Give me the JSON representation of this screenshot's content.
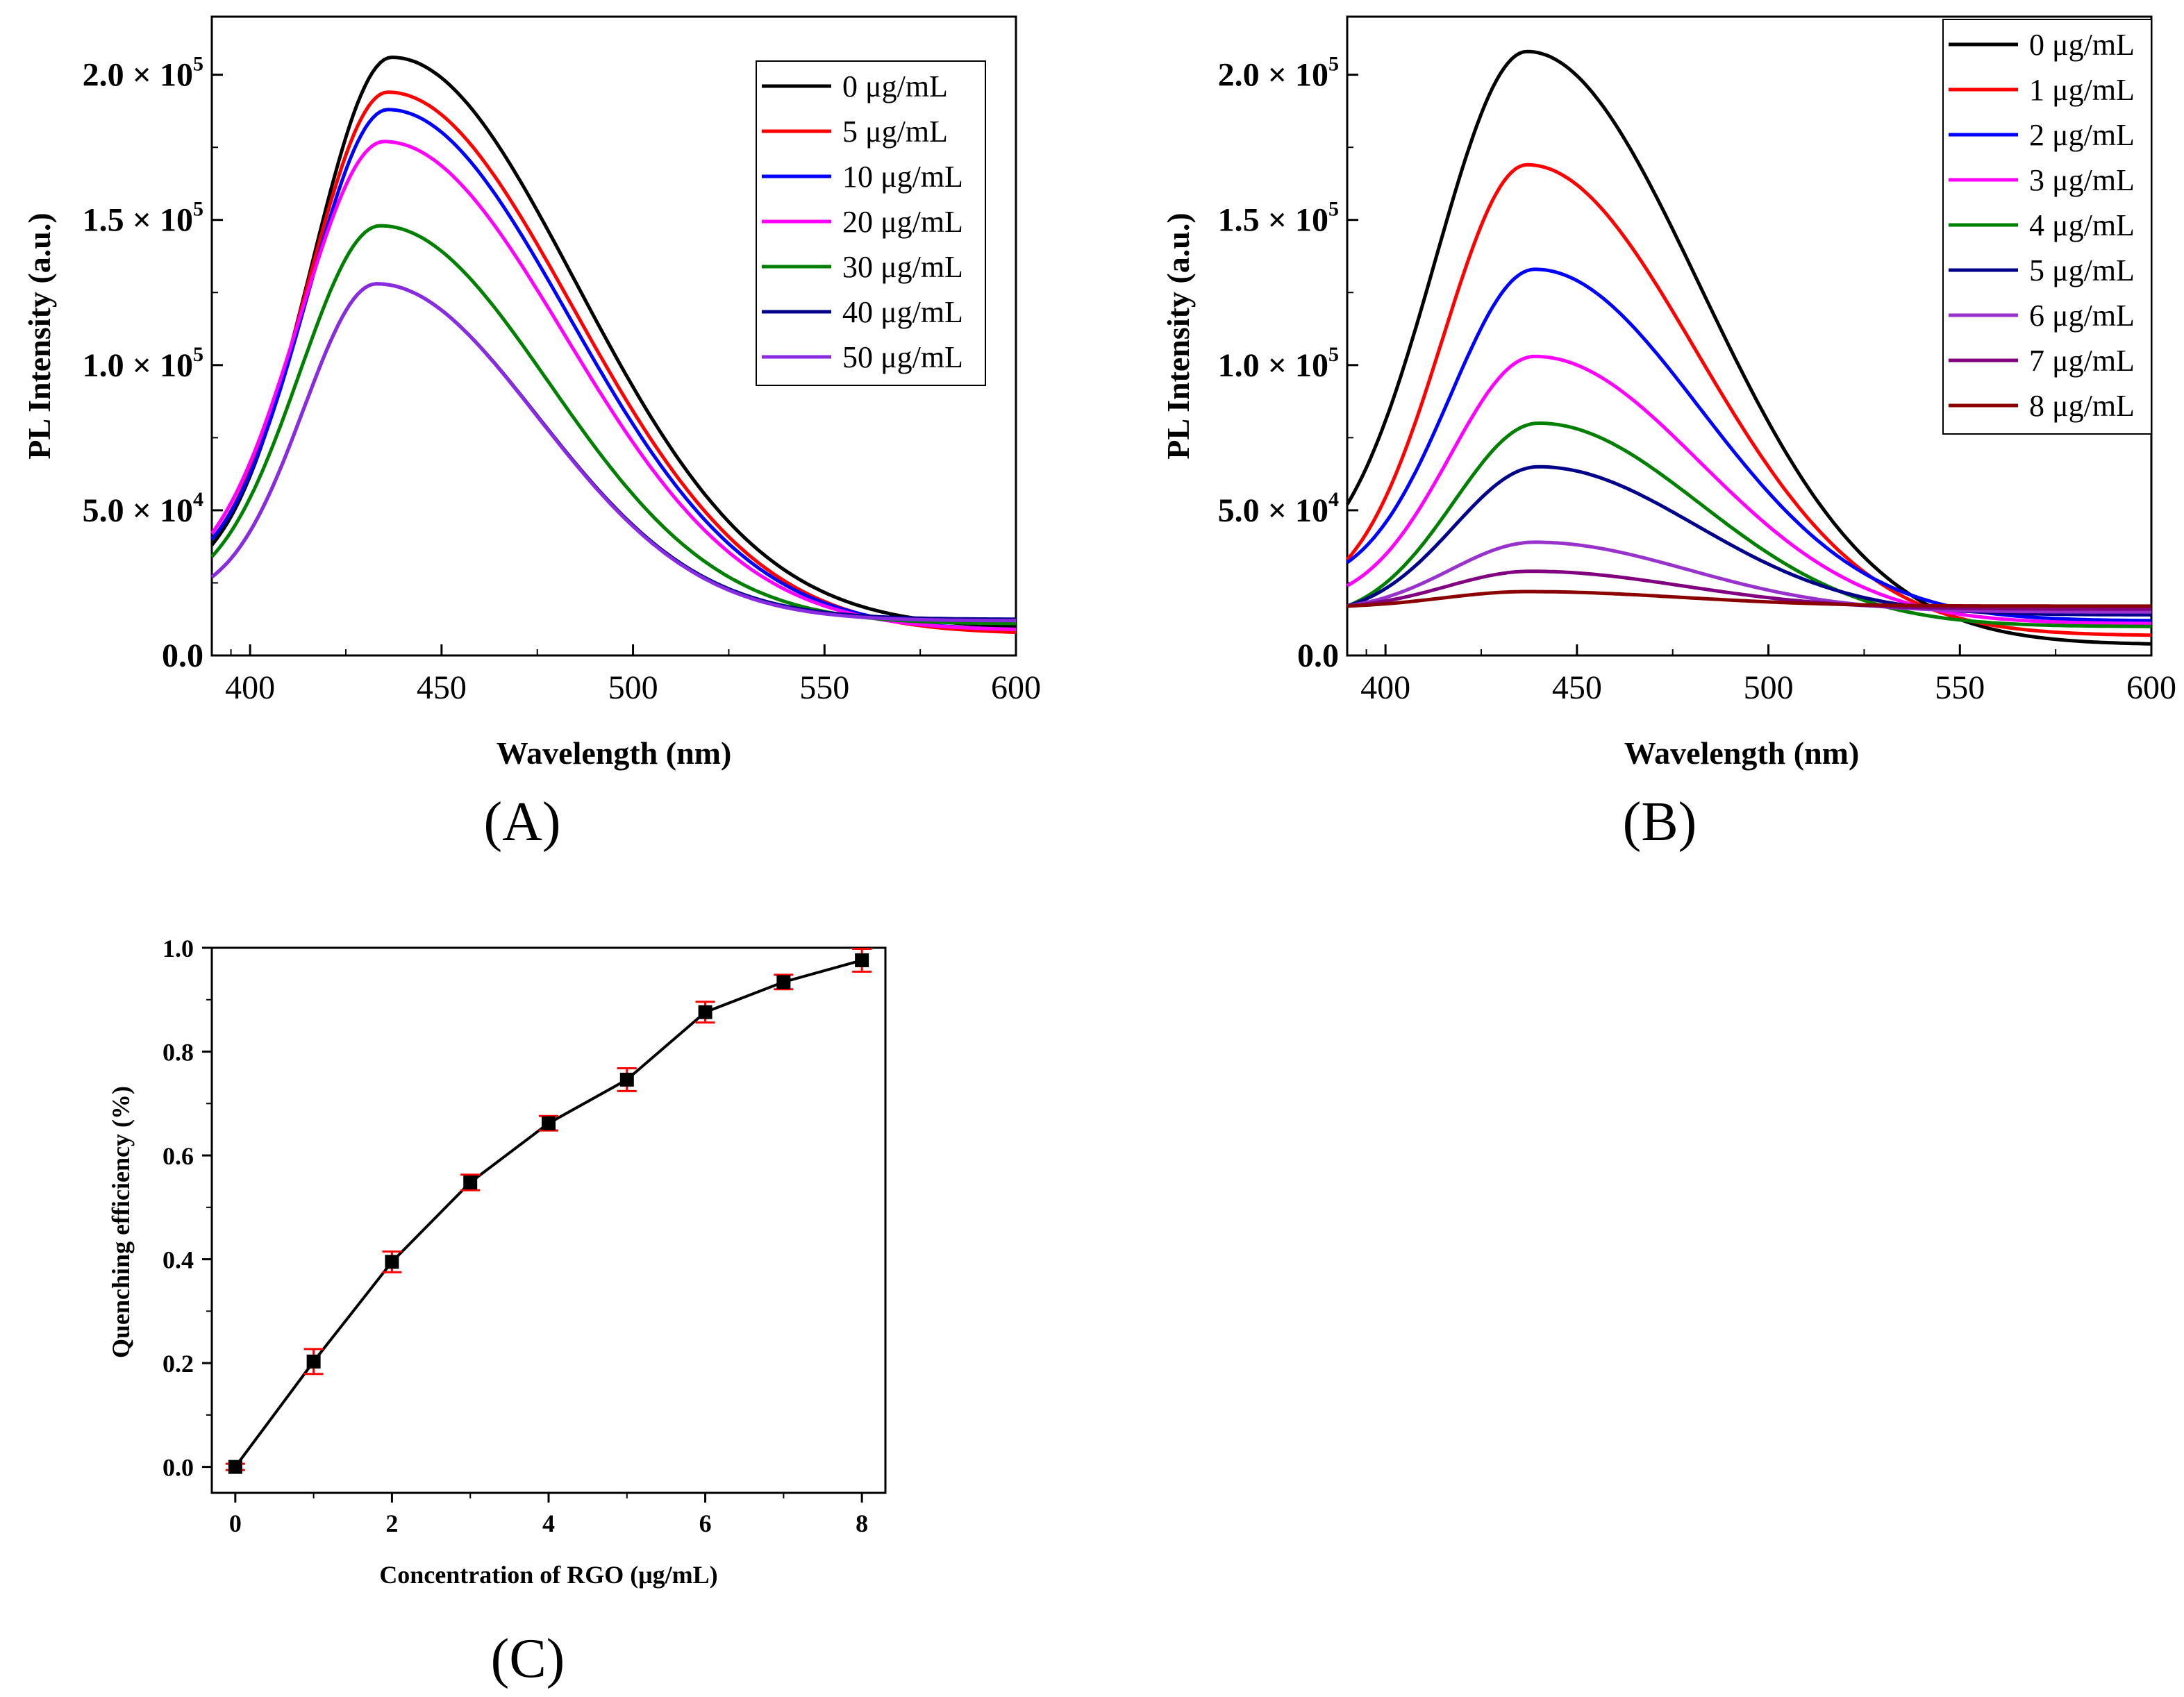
{
  "chart_data": [
    {
      "id": "A",
      "type": "line",
      "panel_label": "(A)",
      "xlabel": "Wavelength (nm)",
      "ylabel": "PL Intensity (a.u.)",
      "xlim": [
        390,
        600
      ],
      "ylim": [
        0,
        220000
      ],
      "x_ticks": [
        400,
        450,
        500,
        550,
        600
      ],
      "x_tick_labels": [
        "400",
        "450",
        "500",
        "550",
        "600"
      ],
      "y_ticks": [
        0,
        50000,
        100000,
        150000,
        200000
      ],
      "y_tick_labels": [
        {
          "base": "0.0",
          "exp": ""
        },
        {
          "base": "5.0 × 10",
          "exp": "4"
        },
        {
          "base": "1.0 × 10",
          "exp": "5"
        },
        {
          "base": "1.5 × 10",
          "exp": "5"
        },
        {
          "base": "2.0 × 10",
          "exp": "5"
        }
      ],
      "legend_position": "top-right",
      "series": [
        {
          "name": "0 μg/mL",
          "color": "#000000",
          "peak_x": 437,
          "peak_y": 206000,
          "start_y": 38000,
          "end_y": 10000,
          "sigma_left": 21,
          "sigma_right": 48,
          "cross_y": 19000,
          "start_x": 390
        },
        {
          "name": "5 μg/mL",
          "color": "#ff0000",
          "peak_x": 436,
          "peak_y": 194000,
          "start_y": 40000,
          "end_y": 8000,
          "sigma_left": 21,
          "sigma_right": 48,
          "cross_y": 19000,
          "start_x": 390
        },
        {
          "name": "10 μg/mL",
          "color": "#0000ff",
          "peak_x": 436,
          "peak_y": 188000,
          "start_y": 40000,
          "end_y": 9000,
          "sigma_left": 21,
          "sigma_right": 47,
          "cross_y": 19000,
          "start_x": 390
        },
        {
          "name": "20 μg/mL",
          "color": "#ff00ff",
          "peak_x": 435,
          "peak_y": 177000,
          "start_y": 42000,
          "end_y": 9000,
          "sigma_left": 22,
          "sigma_right": 47,
          "cross_y": 19000,
          "start_x": 390
        },
        {
          "name": "30 μg/mL",
          "color": "#008000",
          "peak_x": 434,
          "peak_y": 148000,
          "start_y": 34000,
          "end_y": 11000,
          "sigma_left": 21,
          "sigma_right": 44,
          "cross_y": 19000,
          "start_x": 390
        },
        {
          "name": "40 μg/mL",
          "color": "#00008b",
          "peak_x": 433,
          "peak_y": 128000,
          "start_y": 27000,
          "end_y": 12500,
          "sigma_left": 19,
          "sigma_right": 42,
          "cross_y": 19000,
          "start_x": 390
        },
        {
          "name": "50 μg/mL",
          "color": "#8a2be2",
          "peak_x": 433,
          "peak_y": 128000,
          "start_y": 27000,
          "end_y": 12000,
          "sigma_left": 19,
          "sigma_right": 42,
          "cross_y": 19000,
          "start_x": 390
        }
      ]
    },
    {
      "id": "B",
      "type": "line",
      "panel_label": "(B)",
      "xlabel": "Wavelength (nm)",
      "ylabel": "PL Intensity (a.u.)",
      "xlim": [
        390,
        600
      ],
      "ylim": [
        0,
        220000
      ],
      "x_ticks": [
        400,
        450,
        500,
        550,
        600
      ],
      "x_tick_labels": [
        "400",
        "450",
        "500",
        "550",
        "600"
      ],
      "y_ticks": [
        0,
        50000,
        100000,
        150000,
        200000
      ],
      "y_tick_labels": [
        {
          "base": "0.0",
          "exp": ""
        },
        {
          "base": "5.0 × 10",
          "exp": "4"
        },
        {
          "base": "1.0 × 10",
          "exp": "5"
        },
        {
          "base": "1.5 × 10",
          "exp": "5"
        },
        {
          "base": "2.0 × 10",
          "exp": "5"
        }
      ],
      "legend_position": "top-right",
      "series": [
        {
          "name": "0 μg/mL",
          "color": "#000000",
          "peak_x": 437,
          "peak_y": 208000,
          "start_y": 52000,
          "end_y": 4000,
          "sigma_left": 24,
          "sigma_right": 45,
          "cross_y": 17000,
          "start_x": 390
        },
        {
          "name": "1 μg/mL",
          "color": "#ff0000",
          "peak_x": 437,
          "peak_y": 169000,
          "start_y": 33000,
          "end_y": 7000,
          "sigma_left": 22,
          "sigma_right": 44,
          "cross_y": 17000,
          "start_x": 390
        },
        {
          "name": "2 μg/mL",
          "color": "#0000ff",
          "peak_x": 439,
          "peak_y": 133000,
          "start_y": 32000,
          "end_y": 12000,
          "sigma_left": 22,
          "sigma_right": 43,
          "cross_y": 17000,
          "start_x": 390
        },
        {
          "name": "3 μg/mL",
          "color": "#ff00ff",
          "peak_x": 439,
          "peak_y": 103000,
          "start_y": 24000,
          "end_y": 11000,
          "sigma_left": 22,
          "sigma_right": 43,
          "cross_y": 17000,
          "start_x": 390
        },
        {
          "name": "4 μg/mL",
          "color": "#008000",
          "peak_x": 440,
          "peak_y": 80000,
          "start_y": 17000,
          "end_y": 10000,
          "sigma_left": 22,
          "sigma_right": 42,
          "cross_y": 17000,
          "start_x": 390
        },
        {
          "name": "5 μg/mL",
          "color": "#00008b",
          "peak_x": 440,
          "peak_y": 65000,
          "start_y": 17000,
          "end_y": 14000,
          "sigma_left": 22,
          "sigma_right": 41,
          "cross_y": 17000,
          "start_x": 390
        },
        {
          "name": "6 μg/mL",
          "color": "#9932cc",
          "peak_x": 439,
          "peak_y": 39000,
          "start_y": 17000,
          "end_y": 15000,
          "sigma_left": 22,
          "sigma_right": 40,
          "cross_y": 17000,
          "start_x": 390
        },
        {
          "name": "7 μg/mL",
          "color": "#800080",
          "peak_x": 438,
          "peak_y": 29000,
          "start_y": 17000,
          "end_y": 16000,
          "sigma_left": 22,
          "sigma_right": 40,
          "cross_y": 17000,
          "start_x": 390
        },
        {
          "name": "8 μg/mL",
          "color": "#8b0000",
          "peak_x": 437,
          "peak_y": 22000,
          "start_y": 17000,
          "end_y": 17000,
          "sigma_left": 22,
          "sigma_right": 40,
          "cross_y": 17000,
          "start_x": 390
        }
      ]
    },
    {
      "id": "C",
      "type": "scatter",
      "panel_label": "(C)",
      "xlabel": "Concentration of RGO (μg/mL)",
      "ylabel": "Quenching efficiency (%)",
      "xlim": [
        -0.3,
        8.3
      ],
      "ylim": [
        -0.05,
        1.0
      ],
      "x_ticks": [
        0,
        2,
        4,
        6,
        8
      ],
      "x_tick_labels": [
        "0",
        "2",
        "4",
        "6",
        "8"
      ],
      "y_ticks": [
        0.0,
        0.2,
        0.4,
        0.6,
        0.8,
        1.0
      ],
      "y_tick_labels": [
        "0.0",
        "0.2",
        "0.4",
        "0.6",
        "0.8",
        "1.0"
      ],
      "marker_color": "#000000",
      "error_color": "#ff0000",
      "x": [
        0,
        1,
        2,
        3,
        4,
        5,
        6,
        7,
        8
      ],
      "y": [
        0.0,
        0.203,
        0.395,
        0.548,
        0.662,
        0.746,
        0.876,
        0.934,
        0.976
      ],
      "error": [
        0.006,
        0.024,
        0.02,
        0.015,
        0.014,
        0.022,
        0.02,
        0.014,
        0.022
      ]
    }
  ]
}
